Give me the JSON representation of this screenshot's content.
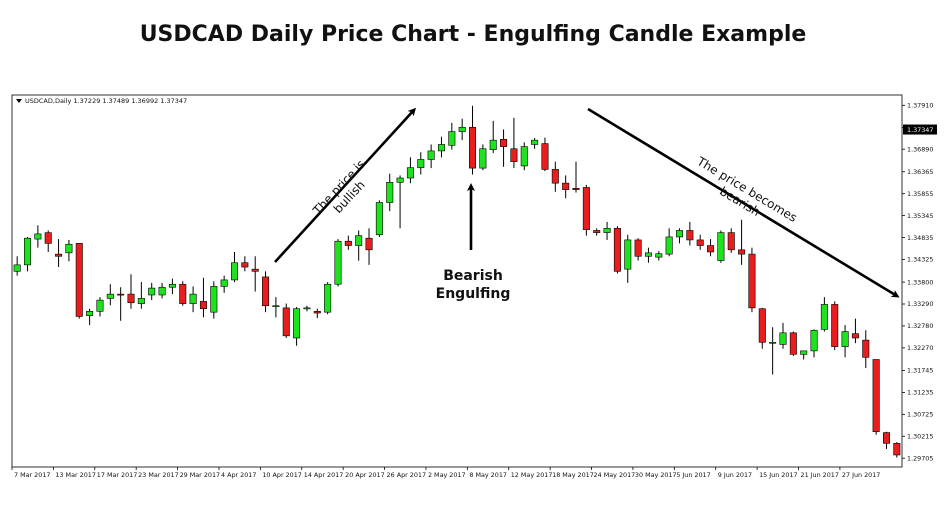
{
  "chart_data": {
    "type": "candlestick",
    "title": "USDCAD Daily Price Chart - Engulfing Candle Example",
    "symbol_info": "USDCAD,Daily  1.37229 1.37489 1.36992 1.37347",
    "current_price_label": "1.37347",
    "colors": {
      "bull": "#1ee21e",
      "bear": "#e81e1e",
      "wick": "#000000",
      "grid": "none",
      "background": "#ffffff"
    },
    "ylim": [
      1.295,
      1.3815
    ],
    "y_ticks": [
      "1.37910",
      "1.37395",
      "1.36890",
      "1.36365",
      "1.35855",
      "1.35345",
      "1.34835",
      "1.34325",
      "1.33800",
      "1.33290",
      "1.32780",
      "1.32270",
      "1.31745",
      "1.31235",
      "1.30725",
      "1.30215",
      "1.29705"
    ],
    "x_ticks": [
      {
        "i": 0,
        "label": "7 Mar 2017"
      },
      {
        "i": 4,
        "label": "13 Mar 2017"
      },
      {
        "i": 8,
        "label": "17 Mar 2017"
      },
      {
        "i": 12,
        "label": "23 Mar 2017"
      },
      {
        "i": 16,
        "label": "29 Mar 2017"
      },
      {
        "i": 20,
        "label": "4 Apr 2017"
      },
      {
        "i": 24,
        "label": "10 Apr 2017"
      },
      {
        "i": 28,
        "label": "14 Apr 2017"
      },
      {
        "i": 32,
        "label": "20 Apr 2017"
      },
      {
        "i": 36,
        "label": "26 Apr 2017"
      },
      {
        "i": 40,
        "label": "2 May 2017"
      },
      {
        "i": 44,
        "label": "8 May 2017"
      },
      {
        "i": 48,
        "label": "12 May 2017"
      },
      {
        "i": 52,
        "label": "18 May 2017"
      },
      {
        "i": 56,
        "label": "24 May 2017"
      },
      {
        "i": 60,
        "label": "30 May 2017"
      },
      {
        "i": 64,
        "label": "5 Jun 2017"
      },
      {
        "i": 68,
        "label": "9 Jun 2017"
      },
      {
        "i": 72,
        "label": "15 Jun 2017"
      },
      {
        "i": 76,
        "label": "21 Jun 2017"
      },
      {
        "i": 80,
        "label": "27 Jun 2017"
      }
    ],
    "candles": [
      {
        "o": 1.3405,
        "h": 1.344,
        "l": 1.3395,
        "c": 1.342
      },
      {
        "o": 1.342,
        "h": 1.3485,
        "l": 1.3405,
        "c": 1.3482
      },
      {
        "o": 1.348,
        "h": 1.3512,
        "l": 1.346,
        "c": 1.3492
      },
      {
        "o": 1.3495,
        "h": 1.35,
        "l": 1.345,
        "c": 1.347
      },
      {
        "o": 1.3445,
        "h": 1.348,
        "l": 1.3415,
        "c": 1.344
      },
      {
        "o": 1.3448,
        "h": 1.3478,
        "l": 1.3428,
        "c": 1.3468
      },
      {
        "o": 1.347,
        "h": 1.347,
        "l": 1.3295,
        "c": 1.33
      },
      {
        "o": 1.3302,
        "h": 1.3318,
        "l": 1.328,
        "c": 1.3312
      },
      {
        "o": 1.3312,
        "h": 1.3345,
        "l": 1.33,
        "c": 1.3338
      },
      {
        "o": 1.3342,
        "h": 1.3375,
        "l": 1.3326,
        "c": 1.3352
      },
      {
        "o": 1.3352,
        "h": 1.3368,
        "l": 1.329,
        "c": 1.335
      },
      {
        "o": 1.3352,
        "h": 1.3398,
        "l": 1.3318,
        "c": 1.3332
      },
      {
        "o": 1.333,
        "h": 1.338,
        "l": 1.3318,
        "c": 1.3342
      },
      {
        "o": 1.335,
        "h": 1.3378,
        "l": 1.3338,
        "c": 1.3366
      },
      {
        "o": 1.335,
        "h": 1.3378,
        "l": 1.3342,
        "c": 1.3368
      },
      {
        "o": 1.3368,
        "h": 1.3388,
        "l": 1.3352,
        "c": 1.3375
      },
      {
        "o": 1.3375,
        "h": 1.3382,
        "l": 1.3325,
        "c": 1.333
      },
      {
        "o": 1.333,
        "h": 1.337,
        "l": 1.331,
        "c": 1.3352
      },
      {
        "o": 1.3335,
        "h": 1.339,
        "l": 1.3298,
        "c": 1.3318
      },
      {
        "o": 1.331,
        "h": 1.3382,
        "l": 1.3295,
        "c": 1.337
      },
      {
        "o": 1.337,
        "h": 1.3395,
        "l": 1.3355,
        "c": 1.3385
      },
      {
        "o": 1.3385,
        "h": 1.345,
        "l": 1.338,
        "c": 1.3425
      },
      {
        "o": 1.3425,
        "h": 1.344,
        "l": 1.3405,
        "c": 1.3415
      },
      {
        "o": 1.341,
        "h": 1.344,
        "l": 1.3358,
        "c": 1.3405
      },
      {
        "o": 1.3392,
        "h": 1.3405,
        "l": 1.331,
        "c": 1.3325
      },
      {
        "o": 1.3325,
        "h": 1.3345,
        "l": 1.3298,
        "c": 1.3325
      },
      {
        "o": 1.332,
        "h": 1.333,
        "l": 1.325,
        "c": 1.3255
      },
      {
        "o": 1.325,
        "h": 1.3322,
        "l": 1.3232,
        "c": 1.3318
      },
      {
        "o": 1.332,
        "h": 1.3325,
        "l": 1.3312,
        "c": 1.332
      },
      {
        "o": 1.3312,
        "h": 1.3318,
        "l": 1.3296,
        "c": 1.3308
      },
      {
        "o": 1.331,
        "h": 1.338,
        "l": 1.3305,
        "c": 1.3375
      },
      {
        "o": 1.3375,
        "h": 1.348,
        "l": 1.337,
        "c": 1.3475
      },
      {
        "o": 1.3475,
        "h": 1.3488,
        "l": 1.3455,
        "c": 1.3465
      },
      {
        "o": 1.3465,
        "h": 1.35,
        "l": 1.343,
        "c": 1.3488
      },
      {
        "o": 1.3482,
        "h": 1.3505,
        "l": 1.342,
        "c": 1.3455
      },
      {
        "o": 1.349,
        "h": 1.357,
        "l": 1.3485,
        "c": 1.3565
      },
      {
        "o": 1.3565,
        "h": 1.3632,
        "l": 1.3545,
        "c": 1.3612
      },
      {
        "o": 1.3612,
        "h": 1.3628,
        "l": 1.3505,
        "c": 1.3622
      },
      {
        "o": 1.3622,
        "h": 1.367,
        "l": 1.361,
        "c": 1.3646
      },
      {
        "o": 1.3646,
        "h": 1.3682,
        "l": 1.363,
        "c": 1.3665
      },
      {
        "o": 1.3665,
        "h": 1.37,
        "l": 1.3645,
        "c": 1.3685
      },
      {
        "o": 1.3685,
        "h": 1.3718,
        "l": 1.367,
        "c": 1.37
      },
      {
        "o": 1.3698,
        "h": 1.375,
        "l": 1.3688,
        "c": 1.373
      },
      {
        "o": 1.373,
        "h": 1.376,
        "l": 1.371,
        "c": 1.374
      },
      {
        "o": 1.374,
        "h": 1.379,
        "l": 1.363,
        "c": 1.3645
      },
      {
        "o": 1.3645,
        "h": 1.37,
        "l": 1.364,
        "c": 1.369
      },
      {
        "o": 1.3688,
        "h": 1.3755,
        "l": 1.368,
        "c": 1.371
      },
      {
        "o": 1.3712,
        "h": 1.3735,
        "l": 1.3648,
        "c": 1.3695
      },
      {
        "o": 1.369,
        "h": 1.3762,
        "l": 1.3645,
        "c": 1.366
      },
      {
        "o": 1.365,
        "h": 1.3705,
        "l": 1.364,
        "c": 1.3695
      },
      {
        "o": 1.37,
        "h": 1.3715,
        "l": 1.369,
        "c": 1.371
      },
      {
        "o": 1.3702,
        "h": 1.3716,
        "l": 1.3638,
        "c": 1.3642
      },
      {
        "o": 1.3642,
        "h": 1.366,
        "l": 1.359,
        "c": 1.361
      },
      {
        "o": 1.361,
        "h": 1.3628,
        "l": 1.3575,
        "c": 1.3595
      },
      {
        "o": 1.3598,
        "h": 1.366,
        "l": 1.3588,
        "c": 1.3595
      },
      {
        "o": 1.36,
        "h": 1.3606,
        "l": 1.3488,
        "c": 1.3502
      },
      {
        "o": 1.35,
        "h": 1.3505,
        "l": 1.3488,
        "c": 1.3495
      },
      {
        "o": 1.3495,
        "h": 1.352,
        "l": 1.3478,
        "c": 1.3505
      },
      {
        "o": 1.3505,
        "h": 1.351,
        "l": 1.34,
        "c": 1.3405
      },
      {
        "o": 1.341,
        "h": 1.349,
        "l": 1.3378,
        "c": 1.3478
      },
      {
        "o": 1.3478,
        "h": 1.3482,
        "l": 1.343,
        "c": 1.344
      },
      {
        "o": 1.344,
        "h": 1.346,
        "l": 1.3425,
        "c": 1.3448
      },
      {
        "o": 1.3438,
        "h": 1.3452,
        "l": 1.343,
        "c": 1.3446
      },
      {
        "o": 1.3445,
        "h": 1.3505,
        "l": 1.344,
        "c": 1.3485
      },
      {
        "o": 1.3485,
        "h": 1.3505,
        "l": 1.347,
        "c": 1.35
      },
      {
        "o": 1.35,
        "h": 1.352,
        "l": 1.3465,
        "c": 1.3478
      },
      {
        "o": 1.3478,
        "h": 1.349,
        "l": 1.3455,
        "c": 1.3465
      },
      {
        "o": 1.3465,
        "h": 1.348,
        "l": 1.344,
        "c": 1.345
      },
      {
        "o": 1.343,
        "h": 1.35,
        "l": 1.3425,
        "c": 1.3495
      },
      {
        "o": 1.3495,
        "h": 1.3505,
        "l": 1.3448,
        "c": 1.3455
      },
      {
        "o": 1.3455,
        "h": 1.3525,
        "l": 1.342,
        "c": 1.3445
      },
      {
        "o": 1.3445,
        "h": 1.346,
        "l": 1.331,
        "c": 1.332
      },
      {
        "o": 1.3318,
        "h": 1.332,
        "l": 1.3225,
        "c": 1.324
      },
      {
        "o": 1.324,
        "h": 1.3275,
        "l": 1.3165,
        "c": 1.324
      },
      {
        "o": 1.3235,
        "h": 1.3285,
        "l": 1.3225,
        "c": 1.3262
      },
      {
        "o": 1.3262,
        "h": 1.3265,
        "l": 1.3208,
        "c": 1.3212
      },
      {
        "o": 1.3212,
        "h": 1.3218,
        "l": 1.32,
        "c": 1.322
      },
      {
        "o": 1.322,
        "h": 1.327,
        "l": 1.3205,
        "c": 1.3268
      },
      {
        "o": 1.327,
        "h": 1.3345,
        "l": 1.3265,
        "c": 1.3328
      },
      {
        "o": 1.3328,
        "h": 1.3335,
        "l": 1.3222,
        "c": 1.323
      },
      {
        "o": 1.323,
        "h": 1.328,
        "l": 1.3205,
        "c": 1.3265
      },
      {
        "o": 1.326,
        "h": 1.3295,
        "l": 1.3238,
        "c": 1.325
      },
      {
        "o": 1.3245,
        "h": 1.3268,
        "l": 1.318,
        "c": 1.3205
      },
      {
        "o": 1.32,
        "h": 1.32,
        "l": 1.3025,
        "c": 1.3032
      },
      {
        "o": 1.303,
        "h": 1.3032,
        "l": 1.2992,
        "c": 1.3005
      },
      {
        "o": 1.3005,
        "h": 1.3008,
        "l": 1.2972,
        "c": 1.2978
      }
    ],
    "annotations": [
      {
        "text": "The price is bullish"
      },
      {
        "text": "Bearish Engulfing"
      },
      {
        "text": "The price becomes bearish"
      }
    ]
  }
}
